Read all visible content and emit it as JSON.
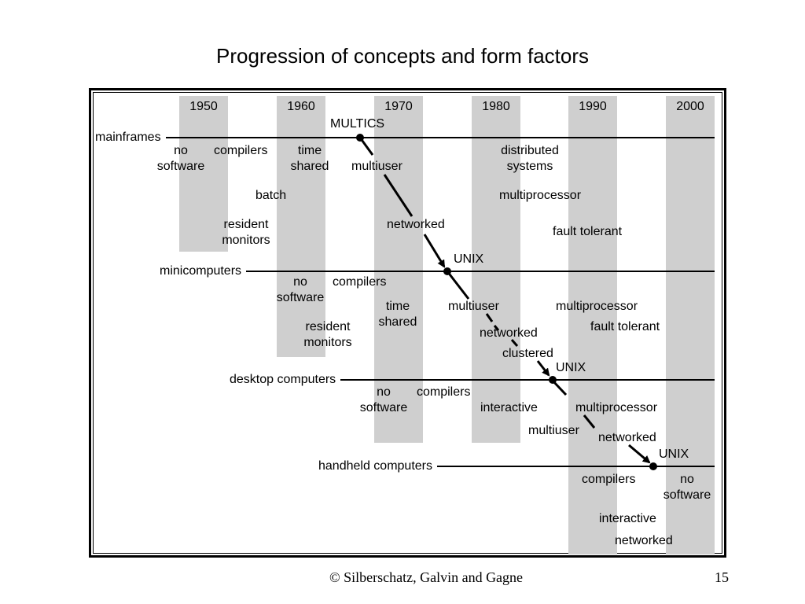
{
  "title": "Progression of concepts and form factors",
  "decades": [
    "1950",
    "1960",
    "1970",
    "1980",
    "1990",
    "2000"
  ],
  "rows": {
    "mainframes": "mainframes",
    "minicomputers": "minicomputers",
    "desktop": "desktop computers",
    "handheld": "handheld computers"
  },
  "milestones": {
    "multics": "MULTICS",
    "unix": "UNIX"
  },
  "mainframes": {
    "no": "no",
    "software": "software",
    "compilers": "compilers",
    "time": "time",
    "shared": "shared",
    "batch": "batch",
    "resident": "resident",
    "monitors": "monitors",
    "multiuser": "multiuser",
    "networked": "networked",
    "distributed": "distributed",
    "systems": "systems",
    "multiprocessor": "multiprocessor",
    "fault_tolerant": "fault tolerant"
  },
  "minicomputers": {
    "no": "no",
    "software": "software",
    "compilers": "compilers",
    "time": "time",
    "shared": "shared",
    "resident": "resident",
    "monitors": "monitors",
    "multiuser": "multiuser",
    "networked": "networked",
    "clustered": "clustered",
    "multiprocessor": "multiprocessor",
    "fault_tolerant": "fault tolerant"
  },
  "desktop": {
    "no": "no",
    "software": "software",
    "compilers": "compilers",
    "interactive": "interactive",
    "multiprocessor": "multiprocessor",
    "multiuser": "multiuser",
    "networked": "networked"
  },
  "handheld": {
    "compilers": "compilers",
    "no": "no",
    "software": "software",
    "interactive": "interactive",
    "networked": "networked"
  },
  "footer": {
    "copyright": "© Silberschatz, Galvin and Gagne",
    "page": "15"
  }
}
